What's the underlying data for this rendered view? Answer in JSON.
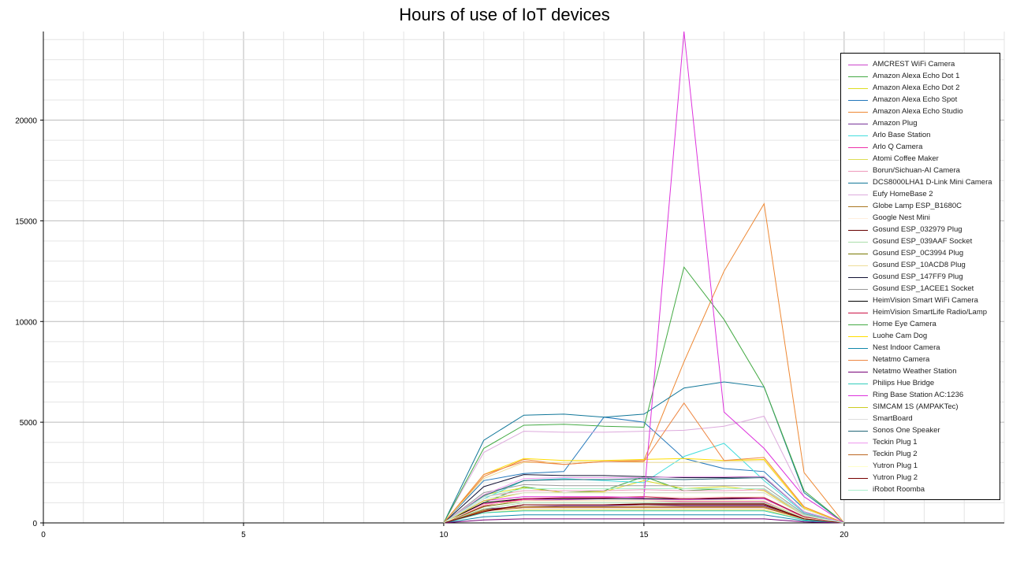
{
  "chart_data": {
    "type": "line",
    "title": "Hours of use of IoT devices",
    "xlabel": "",
    "ylabel": "",
    "xlim": [
      0,
      24
    ],
    "ylim": [
      0,
      24400
    ],
    "x_ticks": [
      "0",
      "5",
      "10",
      "15",
      "20"
    ],
    "y_ticks": [
      "0",
      "5000",
      "10000",
      "15000",
      "20000"
    ],
    "grid": true,
    "legend_position": "right",
    "x": [
      10,
      11,
      12,
      13,
      14,
      15,
      16,
      17,
      18,
      19,
      20
    ],
    "series": [
      {
        "name": "AMCREST WiFi Camera",
        "color": "#cc44cc",
        "values": [
          0,
          900,
          1200,
          1150,
          1200,
          1180,
          1150,
          1180,
          1200,
          300,
          0
        ]
      },
      {
        "name": "Amazon Alexa Echo Dot 1",
        "color": "#44aa44",
        "values": [
          0,
          1000,
          1800,
          1500,
          1600,
          2300,
          1600,
          1700,
          1700,
          400,
          0
        ]
      },
      {
        "name": "Amazon Alexa Echo Dot 2",
        "color": "#dddd22",
        "values": [
          0,
          1400,
          1750,
          1500,
          1550,
          2100,
          1700,
          1800,
          1600,
          350,
          0
        ]
      },
      {
        "name": "Amazon Alexa Echo Spot",
        "color": "#2277bb",
        "values": [
          0,
          2100,
          2450,
          2550,
          5250,
          5000,
          3200,
          2700,
          2550,
          700,
          0
        ]
      },
      {
        "name": "Amazon Alexa Echo Studio",
        "color": "#ee8833",
        "values": [
          0,
          2300,
          3150,
          2900,
          3050,
          3100,
          8000,
          12500,
          15850,
          2500,
          0
        ]
      },
      {
        "name": "Amazon Plug",
        "color": "#773399",
        "values": [
          0,
          700,
          800,
          850,
          850,
          900,
          850,
          850,
          850,
          250,
          0
        ]
      },
      {
        "name": "Arlo Base Station",
        "color": "#44dddd",
        "values": [
          0,
          1200,
          2100,
          2200,
          2100,
          2000,
          3300,
          3950,
          2100,
          500,
          0
        ]
      },
      {
        "name": "Arlo Q Camera",
        "color": "#ee33aa",
        "values": [
          0,
          950,
          1150,
          1100,
          1100,
          1100,
          1050,
          1050,
          1050,
          300,
          0
        ]
      },
      {
        "name": "Atomi Coffee Maker",
        "color": "#dddd55",
        "values": [
          0,
          500,
          650,
          650,
          650,
          650,
          650,
          650,
          650,
          150,
          0
        ]
      },
      {
        "name": "Borun/Sichuan-AI Camera",
        "color": "#ee99bb",
        "values": [
          0,
          1300,
          1600,
          1600,
          1600,
          1650,
          1600,
          1600,
          1650,
          400,
          0
        ]
      },
      {
        "name": "DCS8000LHA1 D-Link Mini Camera",
        "color": "#117799",
        "values": [
          0,
          4100,
          5350,
          5400,
          5250,
          5400,
          6700,
          7000,
          6750,
          1500,
          0
        ]
      },
      {
        "name": "Eufy HomeBase 2",
        "color": "#ddaadd",
        "values": [
          0,
          3500,
          4550,
          4500,
          4500,
          4550,
          4600,
          4800,
          5300,
          1300,
          0
        ]
      },
      {
        "name": "Globe Lamp ESP_B1680C",
        "color": "#aa7722",
        "values": [
          0,
          650,
          800,
          800,
          800,
          800,
          800,
          800,
          800,
          200,
          0
        ]
      },
      {
        "name": "Google Nest Mini",
        "color": "#ffeedd",
        "values": [
          0,
          1000,
          1300,
          1300,
          1300,
          1300,
          1300,
          1300,
          1300,
          300,
          0
        ]
      },
      {
        "name": "Gosund ESP_032979 Plug",
        "color": "#660000",
        "values": [
          0,
          600,
          900,
          900,
          900,
          950,
          950,
          950,
          950,
          200,
          0
        ]
      },
      {
        "name": "Gosund ESP_039AAF Socket",
        "color": "#aaddaa",
        "values": [
          0,
          700,
          1000,
          1000,
          1000,
          1000,
          1000,
          1000,
          1000,
          250,
          0
        ]
      },
      {
        "name": "Gosund ESP_0C3994 Plug",
        "color": "#777700",
        "values": [
          0,
          800,
          1100,
          1100,
          1100,
          1100,
          1100,
          1100,
          1100,
          250,
          0
        ]
      },
      {
        "name": "Gosund ESP_10ACD8 Plug",
        "color": "#eedd99",
        "values": [
          0,
          2200,
          3000,
          3000,
          3050,
          3000,
          3000,
          3050,
          3100,
          700,
          0
        ]
      },
      {
        "name": "Gosund ESP_147FF9 Plug",
        "color": "#111133",
        "values": [
          0,
          1800,
          2400,
          2350,
          2350,
          2300,
          2250,
          2250,
          2300,
          550,
          0
        ]
      },
      {
        "name": "Gosund ESP_1ACEE1 Socket",
        "color": "#999999",
        "values": [
          0,
          1500,
          1900,
          1850,
          1850,
          1850,
          1850,
          1850,
          1850,
          450,
          0
        ]
      },
      {
        "name": "HeimVision Smart WiFi Camera",
        "color": "#000000",
        "values": [
          0,
          1000,
          1200,
          1200,
          1200,
          1200,
          1200,
          1200,
          1250,
          300,
          0
        ]
      },
      {
        "name": "HeimVision SmartLife Radio/Lamp",
        "color": "#cc1144",
        "values": [
          0,
          850,
          1200,
          1250,
          1250,
          1300,
          1200,
          1250,
          1250,
          300,
          0
        ]
      },
      {
        "name": "Home Eye Camera",
        "color": "#44aa44",
        "values": [
          0,
          3700,
          4850,
          4900,
          4800,
          4750,
          12700,
          10100,
          6750,
          1600,
          0
        ]
      },
      {
        "name": "Luohe Cam Dog",
        "color": "#ffdd00",
        "values": [
          0,
          2400,
          3200,
          3100,
          3100,
          3150,
          3200,
          3100,
          3150,
          750,
          0
        ]
      },
      {
        "name": "Nest Indoor Camera",
        "color": "#1188aa",
        "values": [
          0,
          300,
          400,
          400,
          400,
          400,
          400,
          400,
          400,
          100,
          0
        ]
      },
      {
        "name": "Netatmo Camera",
        "color": "#ee8844",
        "values": [
          0,
          2400,
          3050,
          2900,
          3050,
          3050,
          5950,
          3100,
          3250,
          800,
          0
        ]
      },
      {
        "name": "Netatmo Weather Station",
        "color": "#770077",
        "values": [
          0,
          150,
          200,
          200,
          200,
          200,
          200,
          200,
          200,
          50,
          0
        ]
      },
      {
        "name": "Philips Hue Bridge",
        "color": "#33ccbb",
        "values": [
          0,
          500,
          600,
          600,
          600,
          600,
          600,
          600,
          600,
          150,
          0
        ]
      },
      {
        "name": "Ring Base Station AC:1236",
        "color": "#dd33dd",
        "values": [
          0,
          1100,
          1300,
          1300,
          1300,
          1250,
          24400,
          5500,
          3700,
          1300,
          0
        ]
      },
      {
        "name": "SIMCAM 1S (AMPAKTec)",
        "color": "#cccc22",
        "values": [
          0,
          1100,
          1500,
          1500,
          1500,
          1500,
          1500,
          1500,
          1500,
          350,
          0
        ]
      },
      {
        "name": "SmartBoard",
        "color": "#dddddd",
        "values": [
          0,
          1200,
          1500,
          1500,
          1500,
          1500,
          1500,
          1500,
          1500,
          350,
          0
        ]
      },
      {
        "name": "Sonos One Speaker",
        "color": "#226677",
        "values": [
          0,
          1350,
          2100,
          2150,
          2150,
          2200,
          2150,
          2200,
          2250,
          550,
          0
        ]
      },
      {
        "name": "Teckin Plug 1",
        "color": "#ee99ee",
        "values": [
          0,
          1400,
          2200,
          2250,
          2250,
          2250,
          2300,
          2300,
          2300,
          550,
          0
        ]
      },
      {
        "name": "Teckin Plug 2",
        "color": "#bb6622",
        "values": [
          0,
          600,
          750,
          750,
          750,
          750,
          750,
          750,
          750,
          200,
          0
        ]
      },
      {
        "name": "Yutron Plug 1",
        "color": "#ffffcc",
        "values": [
          0,
          900,
          1100,
          1100,
          1100,
          1100,
          1100,
          1100,
          1100,
          250,
          0
        ]
      },
      {
        "name": "Yutron Plug 2",
        "color": "#770000",
        "values": [
          0,
          550,
          900,
          900,
          900,
          900,
          900,
          900,
          900,
          200,
          0
        ]
      },
      {
        "name": "iRobot Roomba",
        "color": "#aaeecc",
        "values": [
          0,
          1300,
          1700,
          1700,
          1700,
          1700,
          1700,
          1700,
          1700,
          400,
          0
        ]
      }
    ]
  }
}
